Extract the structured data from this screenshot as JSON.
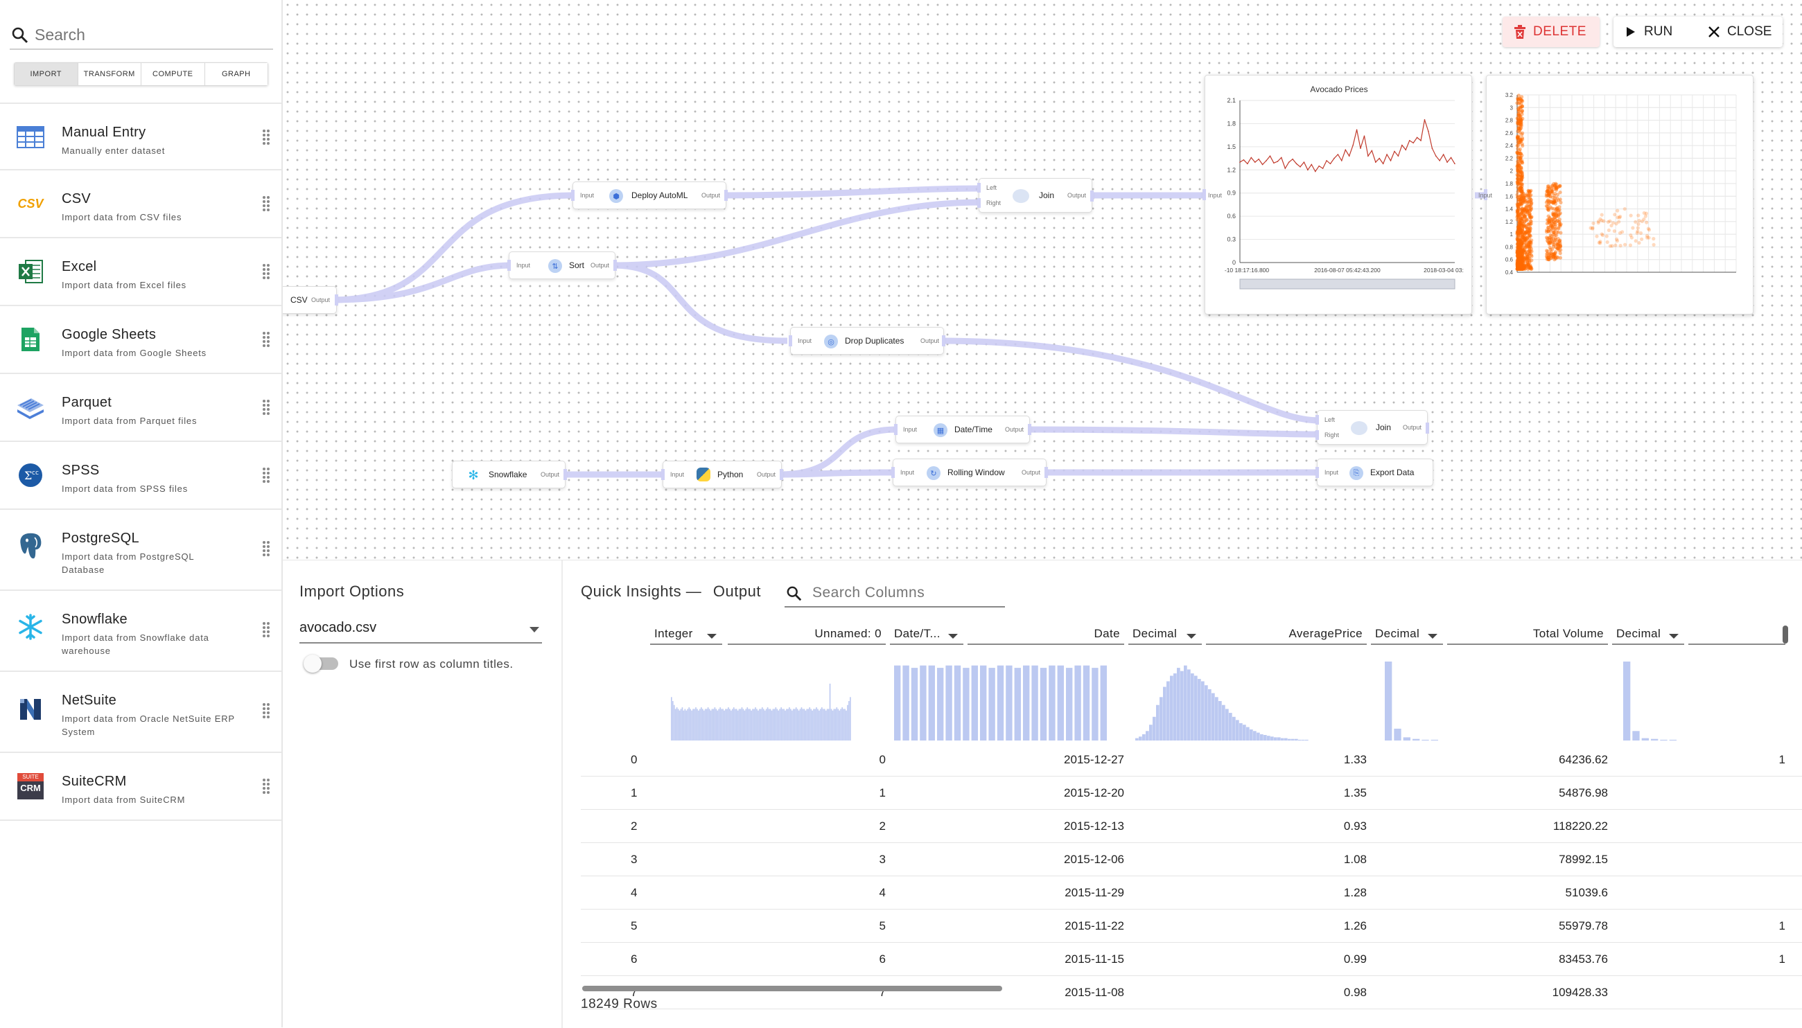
{
  "sidebar": {
    "search_placeholder": "Search",
    "tabs": [
      "IMPORT",
      "TRANSFORM",
      "COMPUTE",
      "GRAPH"
    ],
    "items": [
      {
        "name": "Manual Entry",
        "desc": "Manually enter dataset",
        "icon": "table-icon"
      },
      {
        "name": "CSV",
        "desc": "Import data from CSV files",
        "icon": "csv-icon"
      },
      {
        "name": "Excel",
        "desc": "Import data from Excel files",
        "icon": "excel-icon"
      },
      {
        "name": "Google Sheets",
        "desc": "Import data from Google Sheets",
        "icon": "google-sheets-icon"
      },
      {
        "name": "Parquet",
        "desc": "Import data from Parquet files",
        "icon": "parquet-icon"
      },
      {
        "name": "SPSS",
        "desc": "Import data from SPSS files",
        "icon": "spss-icon"
      },
      {
        "name": "PostgreSQL",
        "desc": "Import data from PostgreSQL Database",
        "icon": "postgresql-icon"
      },
      {
        "name": "Snowflake",
        "desc": "Import data from Snowflake data warehouse",
        "icon": "snowflake-icon"
      },
      {
        "name": "NetSuite",
        "desc": "Import data from Oracle NetSuite ERP System",
        "icon": "netsuite-icon"
      },
      {
        "name": "SuiteCRM",
        "desc": "Import data from SuiteCRM",
        "icon": "suitecrm-icon"
      }
    ],
    "csv_icon_text": "CSV",
    "suitecrm_icon_top": "SUITE",
    "suitecrm_icon_bottom": "CRM"
  },
  "toolbar": {
    "delete": "DELETE",
    "run": "RUN",
    "close": "CLOSE"
  },
  "nodes": {
    "csv": {
      "label": "CSV",
      "out": "Output"
    },
    "automl": {
      "label": "Deploy AutoML",
      "in": "Input",
      "out": "Output"
    },
    "sort": {
      "label": "Sort",
      "in": "Input",
      "out": "Output"
    },
    "join1": {
      "label": "Join",
      "left": "Left",
      "right": "Right",
      "out": "Output"
    },
    "dropdup": {
      "label": "Drop Duplicates",
      "in": "Input",
      "out": "Output"
    },
    "datetime": {
      "label": "Date/Time",
      "in": "Input",
      "out": "Output"
    },
    "join2": {
      "label": "Join",
      "left": "Left",
      "right": "Right",
      "out": "Output"
    },
    "snowflake": {
      "label": "Snowflake",
      "out": "Output"
    },
    "python": {
      "label": "Python",
      "in": "Input",
      "out": "Output"
    },
    "rolling": {
      "label": "Rolling Window",
      "in": "Input",
      "out": "Output"
    },
    "export": {
      "label": "Export Data",
      "in": "Input"
    },
    "linechart_in": "Input",
    "scatter_in": "Input"
  },
  "chart_data": [
    {
      "type": "line",
      "title": "Avocado Prices",
      "xlabel": "",
      "ylabel": "",
      "yticks": [
        "2.1",
        "1.8",
        "1.5",
        "1.2",
        "0.9",
        "0.6",
        "0.3",
        "0"
      ],
      "xticks": [
        "-10 18:17:16.800",
        "2016-08-07 05:42:43.200",
        "2018-03-04 03:"
      ],
      "ylim": [
        0,
        2.1
      ],
      "x_range": [
        "2015-01-04",
        "2018-03-25"
      ],
      "series": [
        {
          "values": [
            1.3,
            1.33,
            1.28,
            1.36,
            1.3,
            1.34,
            1.27,
            1.32,
            1.38,
            1.29,
            1.31,
            1.36,
            1.22,
            1.3,
            1.34,
            1.28,
            1.24,
            1.3,
            1.2,
            1.27,
            1.18,
            1.25,
            1.22,
            1.32,
            1.28,
            1.35,
            1.4,
            1.32,
            1.46,
            1.38,
            1.52,
            1.72,
            1.48,
            1.64,
            1.38,
            1.45,
            1.3,
            1.35,
            1.28,
            1.4,
            1.32,
            1.44,
            1.38,
            1.52,
            1.46,
            1.58,
            1.55,
            1.62,
            1.58,
            1.85,
            1.7,
            1.48,
            1.38,
            1.32,
            1.4,
            1.3,
            1.36,
            1.28
          ]
        }
      ]
    },
    {
      "type": "scatter",
      "title": "",
      "yticks": [
        "3.2",
        "3",
        "2.8",
        "2.6",
        "2.4",
        "2.2",
        "2",
        "1.8",
        "1.6",
        "1.4",
        "1.2",
        "1",
        "0.8",
        "0.6",
        "0.4"
      ],
      "ylim": [
        0.4,
        3.2
      ],
      "xlim": [
        0,
        60000000
      ],
      "clusters": [
        {
          "x_range": [
            0,
            1500000
          ],
          "y_range": [
            0.45,
            3.2
          ],
          "density": "very high"
        },
        {
          "x_range": [
            1500000,
            4000000
          ],
          "y_range": [
            0.45,
            1.7
          ],
          "density": "high"
        },
        {
          "x_range": [
            8000000,
            12000000
          ],
          "y_range": [
            0.6,
            1.8
          ],
          "density": "high"
        },
        {
          "x_range": [
            20000000,
            38000000
          ],
          "y_range": [
            0.8,
            1.4
          ],
          "density": "low"
        }
      ]
    }
  ],
  "bottom": {
    "import_options_title": "Import Options",
    "file": "avocado.csv",
    "toggle_label": "Use first row as column titles.",
    "insights_title": "Quick Insights —",
    "insights_sub": "Output",
    "search_columns_placeholder": "Search Columns",
    "columns": [
      {
        "type": "Integer",
        "name": "Unnamed: 0"
      },
      {
        "type": "Date/T...",
        "name": "Date"
      },
      {
        "type": "Decimal",
        "name": "AveragePrice"
      },
      {
        "type": "Decimal",
        "name": "Total Volume"
      },
      {
        "type": "Decimal",
        "name": ""
      }
    ],
    "rows": [
      {
        "idx": "0",
        "unnamed": "0",
        "date": "2015-12-27",
        "avg": "1.33",
        "vol": "64236.62",
        "extra": "1"
      },
      {
        "idx": "1",
        "unnamed": "1",
        "date": "2015-12-20",
        "avg": "1.35",
        "vol": "54876.98",
        "extra": ""
      },
      {
        "idx": "2",
        "unnamed": "2",
        "date": "2015-12-13",
        "avg": "0.93",
        "vol": "118220.22",
        "extra": ""
      },
      {
        "idx": "3",
        "unnamed": "3",
        "date": "2015-12-06",
        "avg": "1.08",
        "vol": "78992.15",
        "extra": ""
      },
      {
        "idx": "4",
        "unnamed": "4",
        "date": "2015-11-29",
        "avg": "1.28",
        "vol": "51039.6",
        "extra": ""
      },
      {
        "idx": "5",
        "unnamed": "5",
        "date": "2015-11-22",
        "avg": "1.26",
        "vol": "55979.78",
        "extra": "1"
      },
      {
        "idx": "6",
        "unnamed": "6",
        "date": "2015-11-15",
        "avg": "0.99",
        "vol": "83453.76",
        "extra": "1"
      },
      {
        "idx": "7",
        "unnamed": "7",
        "date": "2015-11-08",
        "avg": "0.98",
        "vol": "109428.33",
        "extra": ""
      }
    ],
    "row_count": "18249 Rows",
    "histograms": {
      "unnamed": [
        0.55,
        0.5,
        0.45,
        0.4,
        0.42,
        0.4,
        0.38,
        0.4,
        0.42,
        0.38,
        0.4,
        0.38,
        0.4,
        0.42,
        0.4,
        0.38,
        0.4,
        0.4,
        0.42,
        0.4,
        0.38,
        0.4,
        0.42,
        0.4,
        0.38,
        0.4,
        0.4,
        0.42,
        0.4,
        0.38,
        0.4,
        0.4,
        0.42,
        0.4,
        0.38,
        0.4,
        0.42,
        0.4,
        0.4,
        0.38,
        0.4,
        0.4,
        0.42,
        0.4,
        0.38,
        0.4,
        0.42,
        0.4,
        0.4,
        0.38,
        0.4,
        0.4,
        0.42,
        0.4,
        0.38,
        0.4,
        0.42,
        0.4,
        0.4,
        0.38,
        0.4,
        0.4,
        0.42,
        0.4,
        0.38,
        0.4,
        0.4,
        0.42,
        0.4,
        0.38,
        0.4,
        0.42,
        0.4,
        0.4,
        0.38,
        0.4,
        0.4,
        0.42,
        0.4,
        0.38,
        0.4,
        0.42,
        0.4,
        0.4,
        0.38,
        0.4,
        0.4,
        0.42,
        0.4,
        0.38,
        0.4,
        0.4,
        0.42,
        0.4,
        0.38,
        0.4,
        0.42,
        0.4,
        0.4,
        0.38,
        0.4,
        0.4,
        0.42,
        0.4,
        0.38,
        0.4,
        0.4,
        0.42,
        0.4,
        0.38,
        0.4,
        0.42,
        0.4,
        0.4,
        0.38,
        0.4,
        0.4,
        0.72,
        0.4,
        0.38,
        0.4,
        0.4,
        0.42,
        0.4,
        0.38,
        0.4,
        0.42,
        0.4,
        0.4,
        0.38,
        0.45,
        0.5,
        0.55
      ],
      "date": [
        0.95,
        0.95,
        0.92,
        0.95,
        0.95,
        0.92,
        0.95,
        0.95,
        0.92,
        0.95,
        0.95,
        0.92,
        0.95,
        0.95,
        0.92,
        0.95,
        0.95,
        0.92,
        0.95,
        0.95,
        0.92,
        0.95,
        0.95,
        0.92,
        0.95
      ],
      "avg": [
        0.03,
        0.05,
        0.08,
        0.12,
        0.2,
        0.3,
        0.45,
        0.55,
        0.68,
        0.75,
        0.82,
        0.85,
        0.92,
        0.88,
        0.95,
        0.9,
        0.85,
        0.82,
        0.78,
        0.75,
        0.7,
        0.65,
        0.6,
        0.55,
        0.5,
        0.45,
        0.4,
        0.35,
        0.3,
        0.26,
        0.22,
        0.2,
        0.17,
        0.14,
        0.12,
        0.1,
        0.08,
        0.07,
        0.06,
        0.05,
        0.04,
        0.04,
        0.03,
        0.03,
        0.02,
        0.02,
        0.02,
        0.01,
        0.01,
        0.01
      ],
      "vol": [
        1.0,
        0.15,
        0.04,
        0.02,
        0.01,
        0.01
      ],
      "extra": [
        1.0,
        0.12,
        0.03,
        0.02,
        0.01,
        0.01
      ]
    }
  }
}
